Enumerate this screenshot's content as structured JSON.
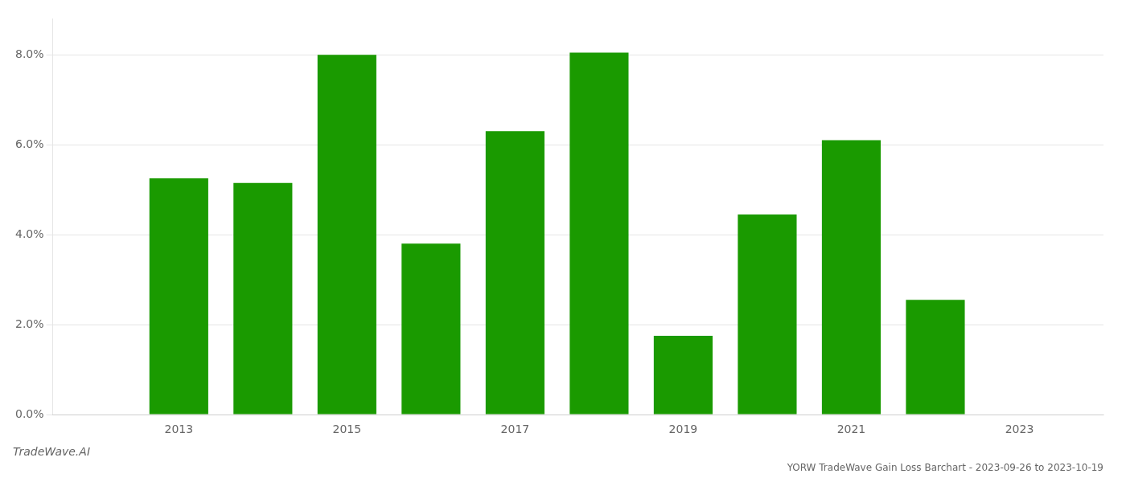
{
  "chart_data": {
    "type": "bar",
    "title": "YORW TradeWave Gain Loss Barchart - 2023-09-26 to 2023-10-19",
    "annotations": [
      {
        "text": "TradeWave.AI"
      }
    ],
    "x": [
      2013,
      2014,
      2015,
      2016,
      2017,
      2018,
      2019,
      2020,
      2021,
      2022
    ],
    "values": [
      0.0525,
      0.0515,
      0.08,
      0.038,
      0.063,
      0.0805,
      0.0175,
      0.0445,
      0.061,
      0.0255
    ],
    "color": "#1a9a00",
    "xlim": [
      2011.5,
      2024.0
    ],
    "xticks": [
      2013,
      2015,
      2017,
      2019,
      2021,
      2023
    ],
    "ylim": [
      0,
      0.088
    ],
    "yticks": [
      {
        "value": 0.0,
        "label": "0.0%"
      },
      {
        "value": 0.02,
        "label": "2.0%"
      },
      {
        "value": 0.04,
        "label": "4.0%"
      },
      {
        "value": 0.06,
        "label": "6.0%"
      },
      {
        "value": 0.08,
        "label": "8.0%"
      }
    ],
    "grid": true
  }
}
